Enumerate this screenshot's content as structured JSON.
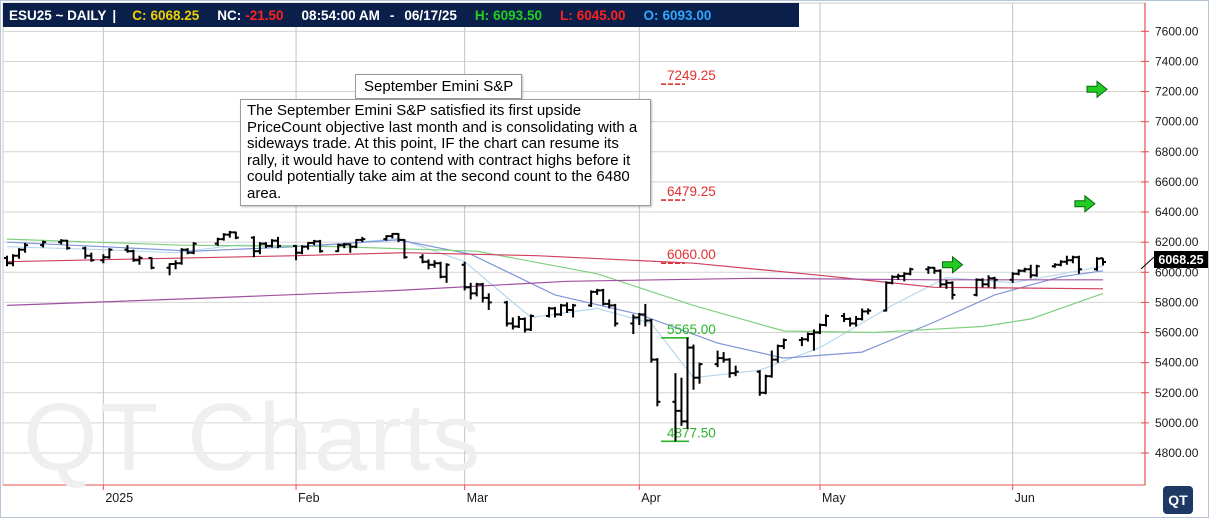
{
  "header": {
    "symbol": "ESU25 ~ DAILY",
    "sep": "|",
    "close_label": "C:",
    "close_value": "6068.25",
    "nc_label": "NC:",
    "nc_value": "-21.50",
    "time": "08:54:00 AM",
    "dash": "-",
    "date": "06/17/25",
    "high_label": "H:",
    "high_value": "6093.50",
    "low_label": "L:",
    "low_value": "6045.00",
    "open_label": "O:",
    "open_value": "6093.00"
  },
  "colors": {
    "header_bg": "#0a1f4a",
    "close": "#f0d000",
    "nc": "#ff2020",
    "high": "#20d020",
    "low": "#ff2020",
    "open": "#30a8ff",
    "red_axis": "#e35050",
    "target_red": "#e03030",
    "target_green": "#2ab52a",
    "arrow_green": "#22cc22"
  },
  "annotation": {
    "title": "September Emini S&P",
    "body": "The September Emini S&P satisfied its first upside PriceCount objective last month and is consolidating with a sideways trade.  At this point, IF the chart can resume its rally, it would have to contend with contract highs before it could potentially take aim at the second count to the 6480 area."
  },
  "watermark": "QT Charts",
  "logo": "QT",
  "last_price": "6068.25",
  "chart_data": {
    "type": "candlestick",
    "title": "",
    "ylim": [
      4700,
      7700
    ],
    "y_ticks": [
      "7600.00",
      "7400.00",
      "7200.00",
      "7000.00",
      "6800.00",
      "6600.00",
      "6400.00",
      "6200.00",
      "6000.00",
      "5800.00",
      "5600.00",
      "5400.00",
      "5200.00",
      "5000.00",
      "4800.00"
    ],
    "x_ticks": [
      {
        "label": "2025",
        "date": "2025-01-02"
      },
      {
        "label": "Feb",
        "date": "2025-02-03"
      },
      {
        "label": "Mar",
        "date": "2025-03-03"
      },
      {
        "label": "Apr",
        "date": "2025-04-01"
      },
      {
        "label": "May",
        "date": "2025-05-01"
      },
      {
        "label": "Jun",
        "date": "2025-06-02"
      }
    ],
    "x_range": [
      "2024-12-17",
      "2025-06-17"
    ],
    "grid": true,
    "price_levels": [
      {
        "label": "7249.25",
        "value": 7249.25,
        "color": "red"
      },
      {
        "label": "6479.25",
        "value": 6479.25,
        "color": "red"
      },
      {
        "label": "6060.00",
        "value": 6060.0,
        "color": "red"
      },
      {
        "label": "5565.00",
        "value": 5565.0,
        "color": "green"
      },
      {
        "label": "4877.50",
        "value": 4877.5,
        "color": "green"
      }
    ],
    "arrows": [
      {
        "date": "2025-06-16",
        "value": 7215
      },
      {
        "date": "2025-06-14",
        "value": 6455
      },
      {
        "date": "2025-05-23",
        "value": 6050
      }
    ],
    "ohlc": [
      [
        "2024-12-17",
        6095,
        6110,
        6040,
        6060
      ],
      [
        "2024-12-18",
        6060,
        6120,
        6040,
        6110
      ],
      [
        "2024-12-19",
        6110,
        6160,
        6090,
        6150
      ],
      [
        "2024-12-20",
        6150,
        6195,
        6130,
        6180
      ],
      [
        "2024-12-23",
        6180,
        6210,
        6165,
        6200
      ],
      [
        "2024-12-26",
        6200,
        6220,
        6185,
        6210
      ],
      [
        "2024-12-27",
        6210,
        6215,
        6150,
        6160
      ],
      [
        "2024-12-30",
        6160,
        6170,
        6090,
        6110
      ],
      [
        "2024-12-31",
        6110,
        6130,
        6070,
        6080
      ],
      [
        "2025-01-02",
        6080,
        6120,
        6060,
        6100
      ],
      [
        "2025-01-03",
        6100,
        6160,
        6090,
        6150
      ],
      [
        "2025-01-06",
        6150,
        6180,
        6130,
        6140
      ],
      [
        "2025-01-07",
        6140,
        6150,
        6070,
        6080
      ],
      [
        "2025-01-08",
        6080,
        6110,
        6050,
        6095
      ],
      [
        "2025-01-10",
        6095,
        6100,
        6020,
        6030
      ],
      [
        "2025-01-13",
        6030,
        6060,
        5980,
        6055
      ],
      [
        "2025-01-14",
        6055,
        6080,
        6020,
        6060
      ],
      [
        "2025-01-15",
        6060,
        6160,
        6050,
        6150
      ],
      [
        "2025-01-16",
        6150,
        6160,
        6120,
        6130
      ],
      [
        "2025-01-17",
        6130,
        6200,
        6120,
        6190
      ],
      [
        "2025-01-21",
        6190,
        6230,
        6175,
        6220
      ],
      [
        "2025-01-22",
        6220,
        6260,
        6210,
        6250
      ],
      [
        "2025-01-23",
        6250,
        6275,
        6230,
        6265
      ],
      [
        "2025-01-24",
        6265,
        6270,
        6220,
        6230
      ],
      [
        "2025-01-27",
        6230,
        6240,
        6100,
        6140
      ],
      [
        "2025-01-28",
        6140,
        6200,
        6120,
        6190
      ],
      [
        "2025-01-29",
        6190,
        6200,
        6160,
        6175
      ],
      [
        "2025-01-30",
        6175,
        6220,
        6165,
        6210
      ],
      [
        "2025-01-31",
        6210,
        6235,
        6160,
        6175
      ],
      [
        "2025-02-03",
        6175,
        6180,
        6080,
        6130
      ],
      [
        "2025-02-04",
        6130,
        6180,
        6120,
        6170
      ],
      [
        "2025-02-05",
        6170,
        6200,
        6150,
        6195
      ],
      [
        "2025-02-06",
        6195,
        6215,
        6180,
        6205
      ],
      [
        "2025-02-07",
        6205,
        6215,
        6130,
        6140
      ],
      [
        "2025-02-10",
        6140,
        6190,
        6135,
        6180
      ],
      [
        "2025-02-11",
        6180,
        6195,
        6160,
        6185
      ],
      [
        "2025-02-12",
        6185,
        6190,
        6130,
        6170
      ],
      [
        "2025-02-13",
        6170,
        6220,
        6160,
        6215
      ],
      [
        "2025-02-14",
        6215,
        6235,
        6200,
        6220
      ],
      [
        "2025-02-18",
        6220,
        6245,
        6210,
        6240
      ],
      [
        "2025-02-19",
        6240,
        6260,
        6225,
        6255
      ],
      [
        "2025-02-20",
        6255,
        6260,
        6200,
        6215
      ],
      [
        "2025-02-21",
        6215,
        6220,
        6090,
        6100
      ],
      [
        "2025-02-24",
        6100,
        6120,
        6060,
        6070
      ],
      [
        "2025-02-25",
        6070,
        6085,
        6020,
        6050
      ],
      [
        "2025-02-26",
        6050,
        6080,
        6030,
        6060
      ],
      [
        "2025-02-27",
        6060,
        6070,
        5960,
        5970
      ],
      [
        "2025-02-28",
        5970,
        6060,
        5930,
        6050
      ],
      [
        "2025-03-03",
        6050,
        6070,
        5880,
        5900
      ],
      [
        "2025-03-04",
        5900,
        5930,
        5820,
        5860
      ],
      [
        "2025-03-05",
        5860,
        5930,
        5840,
        5920
      ],
      [
        "2025-03-06",
        5920,
        5930,
        5800,
        5830
      ],
      [
        "2025-03-07",
        5830,
        5860,
        5750,
        5800
      ],
      [
        "2025-03-10",
        5800,
        5810,
        5640,
        5660
      ],
      [
        "2025-03-11",
        5660,
        5700,
        5620,
        5640
      ],
      [
        "2025-03-12",
        5640,
        5710,
        5630,
        5690
      ],
      [
        "2025-03-13",
        5690,
        5700,
        5600,
        5620
      ],
      [
        "2025-03-14",
        5620,
        5720,
        5610,
        5710
      ],
      [
        "2025-03-17",
        5710,
        5770,
        5700,
        5760
      ],
      [
        "2025-03-18",
        5760,
        5770,
        5700,
        5720
      ],
      [
        "2025-03-19",
        5720,
        5790,
        5710,
        5780
      ],
      [
        "2025-03-20",
        5780,
        5800,
        5730,
        5750
      ],
      [
        "2025-03-21",
        5750,
        5790,
        5700,
        5780
      ],
      [
        "2025-03-24",
        5780,
        5880,
        5770,
        5870
      ],
      [
        "2025-03-25",
        5870,
        5890,
        5850,
        5880
      ],
      [
        "2025-03-26",
        5880,
        5890,
        5780,
        5790
      ],
      [
        "2025-03-27",
        5790,
        5820,
        5760,
        5780
      ],
      [
        "2025-03-28",
        5780,
        5790,
        5640,
        5660
      ],
      [
        "2025-03-31",
        5660,
        5720,
        5590,
        5700
      ],
      [
        "2025-04-01",
        5700,
        5730,
        5650,
        5720
      ],
      [
        "2025-04-02",
        5720,
        5790,
        5640,
        5680
      ],
      [
        "2025-04-03",
        5680,
        5690,
        5400,
        5420
      ],
      [
        "2025-04-04",
        5420,
        5430,
        5110,
        5140
      ],
      [
        "2025-04-07",
        5140,
        5330,
        4877.5,
        5080
      ],
      [
        "2025-04-08",
        5080,
        5300,
        4980,
        5010
      ],
      [
        "2025-04-09",
        5010,
        5565,
        4960,
        5500
      ],
      [
        "2025-04-10",
        5500,
        5520,
        5220,
        5300
      ],
      [
        "2025-04-11",
        5300,
        5400,
        5260,
        5390
      ],
      [
        "2025-04-14",
        5390,
        5480,
        5370,
        5430
      ],
      [
        "2025-04-15",
        5430,
        5470,
        5400,
        5420
      ],
      [
        "2025-04-16",
        5420,
        5430,
        5300,
        5330
      ],
      [
        "2025-04-17",
        5330,
        5380,
        5310,
        5340
      ],
      [
        "2025-04-21",
        5340,
        5350,
        5180,
        5200
      ],
      [
        "2025-04-22",
        5200,
        5320,
        5190,
        5310
      ],
      [
        "2025-04-23",
        5310,
        5480,
        5300,
        5420
      ],
      [
        "2025-04-24",
        5420,
        5520,
        5400,
        5510
      ],
      [
        "2025-04-25",
        5510,
        5560,
        5490,
        5550
      ],
      [
        "2025-04-28",
        5550,
        5570,
        5510,
        5555
      ],
      [
        "2025-04-29",
        5555,
        5600,
        5540,
        5590
      ],
      [
        "2025-04-30",
        5590,
        5620,
        5480,
        5600
      ],
      [
        "2025-05-01",
        5600,
        5660,
        5590,
        5650
      ],
      [
        "2025-05-02",
        5650,
        5720,
        5640,
        5710
      ],
      [
        "2025-05-05",
        5710,
        5730,
        5670,
        5690
      ],
      [
        "2025-05-06",
        5690,
        5700,
        5640,
        5660
      ],
      [
        "2025-05-07",
        5660,
        5710,
        5640,
        5690
      ],
      [
        "2025-05-08",
        5690,
        5760,
        5680,
        5740
      ],
      [
        "2025-05-09",
        5740,
        5760,
        5720,
        5745
      ],
      [
        "2025-05-12",
        5745,
        5940,
        5740,
        5930
      ],
      [
        "2025-05-13",
        5930,
        5980,
        5920,
        5970
      ],
      [
        "2025-05-14",
        5970,
        5990,
        5950,
        5975
      ],
      [
        "2025-05-15",
        5975,
        6000,
        5940,
        5990
      ],
      [
        "2025-05-16",
        5990,
        6030,
        5980,
        6020
      ],
      [
        "2025-05-19",
        6020,
        6040,
        5990,
        6030
      ],
      [
        "2025-05-20",
        6030,
        6035,
        5990,
        6010
      ],
      [
        "2025-05-21",
        6010,
        6020,
        5900,
        5920
      ],
      [
        "2025-05-22",
        5920,
        5950,
        5890,
        5930
      ],
      [
        "2025-05-23",
        5930,
        5940,
        5820,
        5850
      ],
      [
        "2025-05-27",
        5850,
        5960,
        5840,
        5950
      ],
      [
        "2025-05-28",
        5950,
        5960,
        5900,
        5920
      ],
      [
        "2025-05-29",
        5920,
        5980,
        5900,
        5960
      ],
      [
        "2025-05-30",
        5960,
        5970,
        5890,
        5950
      ],
      [
        "2025-06-02",
        5950,
        6000,
        5930,
        5990
      ],
      [
        "2025-06-03",
        5990,
        6020,
        5980,
        6010
      ],
      [
        "2025-06-04",
        6010,
        6030,
        6000,
        6020
      ],
      [
        "2025-06-05",
        6020,
        6050,
        5960,
        5980
      ],
      [
        "2025-06-06",
        5980,
        6050,
        5970,
        6040
      ],
      [
        "2025-06-09",
        6040,
        6060,
        6030,
        6050
      ],
      [
        "2025-06-10",
        6050,
        6080,
        6040,
        6070
      ],
      [
        "2025-06-11",
        6070,
        6110,
        6050,
        6080
      ],
      [
        "2025-06-12",
        6080,
        6110,
        6060,
        6100
      ],
      [
        "2025-06-13",
        6100,
        6110,
        5990,
        6020
      ],
      [
        "2025-06-16",
        6020,
        6100,
        6010,
        6090
      ],
      [
        "2025-06-17",
        6093,
        6093.5,
        6045,
        6068.25
      ]
    ],
    "overlays": [
      {
        "name": "",
        "color": "#b5d8f0",
        "points": [
          [
            "2024-12-17",
            6170
          ],
          [
            "2025-01-02",
            6150
          ],
          [
            "2025-01-14",
            6130
          ],
          [
            "2025-01-24",
            6180
          ],
          [
            "2025-02-07",
            6175
          ],
          [
            "2025-02-20",
            6225
          ],
          [
            "2025-03-03",
            6070
          ],
          [
            "2025-03-14",
            5700
          ],
          [
            "2025-03-25",
            5760
          ],
          [
            "2025-04-03",
            5660
          ],
          [
            "2025-04-10",
            5300
          ],
          [
            "2025-04-21",
            5350
          ],
          [
            "2025-05-01",
            5500
          ],
          [
            "2025-05-13",
            5780
          ],
          [
            "2025-05-22",
            5965
          ],
          [
            "2025-06-02",
            5930
          ],
          [
            "2025-06-17",
            6040
          ]
        ]
      },
      {
        "name": "",
        "color": "#7f95d8",
        "points": [
          [
            "2024-12-17",
            6200
          ],
          [
            "2025-01-02",
            6170
          ],
          [
            "2025-01-17",
            6140
          ],
          [
            "2025-02-03",
            6170
          ],
          [
            "2025-02-20",
            6215
          ],
          [
            "2025-03-04",
            6120
          ],
          [
            "2025-03-18",
            5850
          ],
          [
            "2025-04-01",
            5720
          ],
          [
            "2025-04-14",
            5530
          ],
          [
            "2025-04-25",
            5430
          ],
          [
            "2025-05-08",
            5470
          ],
          [
            "2025-05-20",
            5670
          ],
          [
            "2025-05-30",
            5850
          ],
          [
            "2025-06-10",
            5970
          ],
          [
            "2025-06-17",
            6010
          ]
        ]
      },
      {
        "name": "",
        "color": "#80d080",
        "points": [
          [
            "2024-12-17",
            6220
          ],
          [
            "2025-01-15",
            6180
          ],
          [
            "2025-02-10",
            6170
          ],
          [
            "2025-03-05",
            6140
          ],
          [
            "2025-03-25",
            5990
          ],
          [
            "2025-04-10",
            5780
          ],
          [
            "2025-04-25",
            5610
          ],
          [
            "2025-05-10",
            5600
          ],
          [
            "2025-05-28",
            5640
          ],
          [
            "2025-06-05",
            5690
          ],
          [
            "2025-06-17",
            5860
          ]
        ]
      },
      {
        "name": "",
        "color": "#d04060",
        "points": [
          [
            "2024-12-17",
            6070
          ],
          [
            "2025-02-03",
            6110
          ],
          [
            "2025-02-21",
            6130
          ],
          [
            "2025-03-15",
            6110
          ],
          [
            "2025-04-10",
            6060
          ],
          [
            "2025-05-01",
            5980
          ],
          [
            "2025-05-20",
            5900
          ],
          [
            "2025-06-17",
            5890
          ]
        ]
      },
      {
        "name": "",
        "color": "#a050a0",
        "points": [
          [
            "2024-12-17",
            5780
          ],
          [
            "2025-01-20",
            5830
          ],
          [
            "2025-02-20",
            5880
          ],
          [
            "2025-03-20",
            5940
          ],
          [
            "2025-04-20",
            5960
          ],
          [
            "2025-05-20",
            5950
          ],
          [
            "2025-06-17",
            5950
          ]
        ]
      }
    ]
  }
}
